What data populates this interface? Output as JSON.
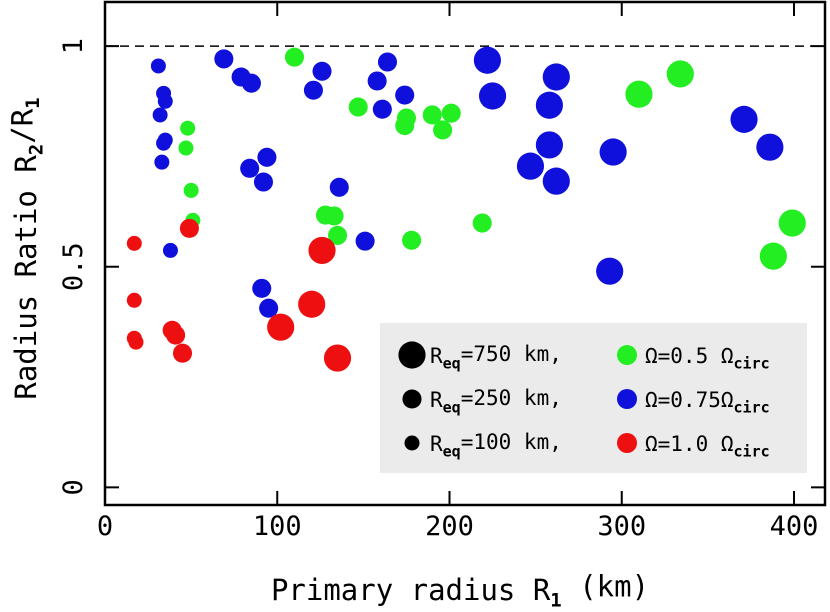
{
  "chart_data": {
    "type": "scatter",
    "xlabel": [
      {
        "text": "Primary radius R"
      },
      {
        "text": "1",
        "sub": true
      },
      {
        "text": " (km)"
      }
    ],
    "ylabel": [
      {
        "text": "Radius Ratio R"
      },
      {
        "text": "2",
        "sub": true
      },
      {
        "text": "/R"
      },
      {
        "text": "1",
        "sub": true
      }
    ],
    "xlim": [
      0,
      418
    ],
    "ylim": [
      -0.04,
      1.1
    ],
    "xticks": [
      0,
      100,
      200,
      300,
      400
    ],
    "yticks": [
      0,
      0.5,
      1
    ],
    "reference_line": {
      "y": 1,
      "style": "dashed"
    },
    "size_legend": [
      {
        "size": 750,
        "label": [
          {
            "text": "R"
          },
          {
            "text": "eq",
            "sub": true
          },
          {
            "text": "=750 km,"
          }
        ]
      },
      {
        "size": 250,
        "label": [
          {
            "text": "R"
          },
          {
            "text": "eq",
            "sub": true
          },
          {
            "text": "=250 km,"
          }
        ]
      },
      {
        "size": 100,
        "label": [
          {
            "text": "R"
          },
          {
            "text": "eq",
            "sub": true
          },
          {
            "text": "=100 km,"
          }
        ]
      }
    ],
    "series": [
      {
        "name": [
          {
            "text": "Ω=0.5 Ω"
          },
          {
            "text": "circ",
            "sub": true
          }
        ],
        "color": "#22ee22",
        "x": [
          110,
          147,
          175,
          174,
          190,
          196,
          201,
          219,
          178,
          128,
          133,
          135,
          310,
          334,
          388,
          399,
          48,
          47,
          50,
          51
        ],
        "values": [
          0.975,
          0.862,
          0.837,
          0.82,
          0.844,
          0.81,
          0.848,
          0.599,
          0.56,
          0.617,
          0.615,
          0.571,
          0.891,
          0.937,
          0.524,
          0.599,
          0.814,
          0.769,
          0.673,
          0.605
        ],
        "sizes": [
          250,
          250,
          250,
          250,
          250,
          250,
          250,
          250,
          250,
          250,
          250,
          250,
          750,
          750,
          750,
          750,
          100,
          100,
          100,
          100
        ]
      },
      {
        "name": [
          {
            "text": "Ω=0.75Ω"
          },
          {
            "text": "circ",
            "sub": true
          }
        ],
        "color": "#1010dd",
        "x": [
          31,
          34,
          35,
          32,
          35,
          34,
          33,
          38,
          69,
          79,
          85,
          84,
          92,
          94,
          91,
          95,
          121,
          126,
          136,
          151,
          158,
          164,
          161,
          174,
          222,
          225,
          247,
          258,
          258,
          262,
          262,
          295,
          293,
          371,
          386
        ],
        "values": [
          0.955,
          0.893,
          0.875,
          0.844,
          0.787,
          0.78,
          0.737,
          0.537,
          0.971,
          0.93,
          0.916,
          0.723,
          0.692,
          0.748,
          0.451,
          0.406,
          0.9,
          0.943,
          0.68,
          0.558,
          0.921,
          0.964,
          0.857,
          0.889,
          0.968,
          0.887,
          0.728,
          0.866,
          0.776,
          0.694,
          0.93,
          0.76,
          0.49,
          0.834,
          0.771
        ],
        "sizes": [
          100,
          100,
          100,
          100,
          100,
          100,
          100,
          100,
          250,
          250,
          250,
          250,
          250,
          250,
          250,
          250,
          250,
          250,
          250,
          250,
          250,
          250,
          250,
          250,
          750,
          750,
          750,
          750,
          750,
          750,
          750,
          750,
          750,
          750,
          750
        ]
      },
      {
        "name": [
          {
            "text": "Ω=1.0 Ω"
          },
          {
            "text": "circ",
            "sub": true
          }
        ],
        "color": "#ee1010",
        "x": [
          17,
          17,
          17,
          18,
          49,
          39,
          41,
          45,
          102,
          120,
          126,
          135
        ],
        "values": [
          0.553,
          0.424,
          0.338,
          0.329,
          0.587,
          0.356,
          0.345,
          0.304,
          0.363,
          0.415,
          0.537,
          0.293
        ],
        "sizes": [
          100,
          100,
          100,
          100,
          250,
          250,
          250,
          250,
          750,
          750,
          750,
          750
        ]
      }
    ]
  }
}
